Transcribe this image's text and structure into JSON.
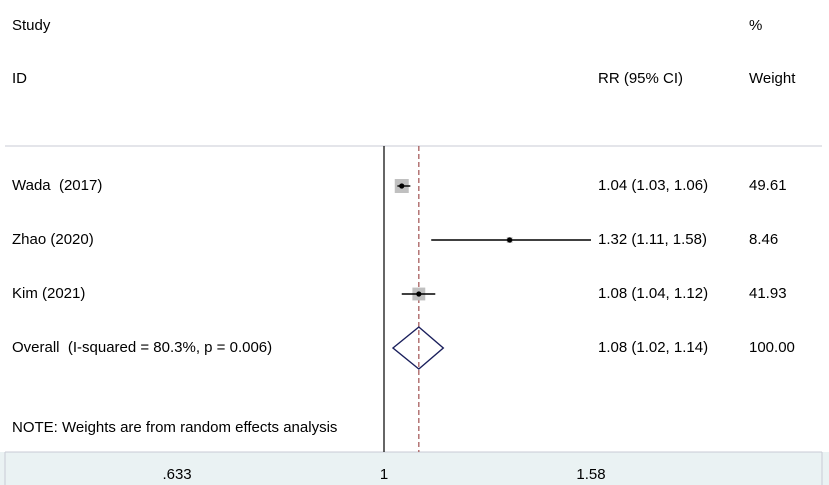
{
  "header": {
    "study_label": "Study",
    "id_label": "ID",
    "effect_label": "RR (95% CI)",
    "pct_label": "%",
    "weight_label": "Weight"
  },
  "chart_data": {
    "type": "forest",
    "effect_measure": "RR",
    "x_scale": "log",
    "x_ticks": [
      0.633,
      1,
      1.58
    ],
    "x_tick_labels": [
      ".633",
      "1",
      "1.58"
    ],
    "null_line": 1,
    "overall_line": 1.08,
    "studies": [
      {
        "label": "Wada  (2017)",
        "rr": 1.04,
        "lower": 1.03,
        "upper": 1.06,
        "ci_text": "1.04 (1.03, 1.06)",
        "weight": 49.61,
        "weight_text": "49.61"
      },
      {
        "label": "Zhao (2020)",
        "rr": 1.32,
        "lower": 1.11,
        "upper": 1.58,
        "ci_text": "1.32 (1.11, 1.58)",
        "weight": 8.46,
        "weight_text": "8.46"
      },
      {
        "label": "Kim (2021)",
        "rr": 1.08,
        "lower": 1.04,
        "upper": 1.12,
        "ci_text": "1.08 (1.04, 1.12)",
        "weight": 41.93,
        "weight_text": "41.93"
      }
    ],
    "overall": {
      "label": "Overall  (I-squared = 80.3%, p = 0.006)",
      "rr": 1.08,
      "lower": 1.02,
      "upper": 1.14,
      "ci_text": "1.08 (1.02, 1.14)",
      "weight_text": "100.00"
    },
    "note": "NOTE: Weights are from random effects analysis",
    "colors": {
      "axis_band": "#eaf2f3",
      "weight_box": "#c0c0c0",
      "diamond": "#1a1f5c",
      "overall_line": "#a05050"
    }
  }
}
